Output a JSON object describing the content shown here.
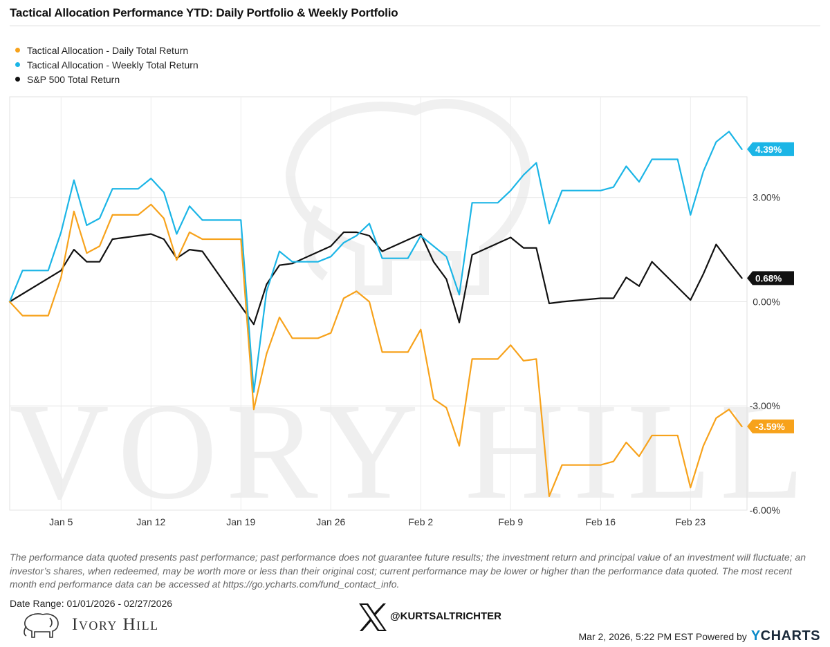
{
  "title": "Tactical Allocation Performance YTD: Daily Portfolio & Weekly Portfolio",
  "legend": [
    {
      "name": "Tactical Allocation - Daily Total Return",
      "color": "#f7a21b"
    },
    {
      "name": "Tactical Allocation - Weekly Total Return",
      "color": "#1bb5e6"
    },
    {
      "name": "S&P 500 Total Return",
      "color": "#111111"
    }
  ],
  "chart_data": {
    "type": "line",
    "xlabel": "",
    "ylabel": "",
    "x_ticks": [
      "Jan 5",
      "Jan 12",
      "Jan 19",
      "Jan 26",
      "Feb 2",
      "Feb 9",
      "Feb 16",
      "Feb 23"
    ],
    "y_ticks": [
      "3.00%",
      "0.00%",
      "-3.00%",
      "-6.00%"
    ],
    "ylim": [
      -6.0,
      5.9
    ],
    "grid": true,
    "legend_position": "top-left",
    "x": [
      "2026-01-01",
      "2026-01-02",
      "2026-01-03",
      "2026-01-04",
      "2026-01-05",
      "2026-01-06",
      "2026-01-07",
      "2026-01-08",
      "2026-01-09",
      "2026-01-10",
      "2026-01-11",
      "2026-01-12",
      "2026-01-13",
      "2026-01-14",
      "2026-01-15",
      "2026-01-16",
      "2026-01-17",
      "2026-01-18",
      "2026-01-19",
      "2026-01-20",
      "2026-01-21",
      "2026-01-22",
      "2026-01-23",
      "2026-01-24",
      "2026-01-25",
      "2026-01-26",
      "2026-01-27",
      "2026-01-28",
      "2026-01-29",
      "2026-01-30",
      "2026-01-31",
      "2026-02-01",
      "2026-02-02",
      "2026-02-03",
      "2026-02-04",
      "2026-02-05",
      "2026-02-06",
      "2026-02-07",
      "2026-02-08",
      "2026-02-09",
      "2026-02-10",
      "2026-02-11",
      "2026-02-12",
      "2026-02-13",
      "2026-02-14",
      "2026-02-15",
      "2026-02-16",
      "2026-02-17",
      "2026-02-18",
      "2026-02-19",
      "2026-02-20",
      "2026-02-21",
      "2026-02-22",
      "2026-02-23",
      "2026-02-24",
      "2026-02-25",
      "2026-02-26",
      "2026-02-27"
    ],
    "series": [
      {
        "name": "Tactical Allocation - Daily Total Return",
        "color": "#f7a21b",
        "last_label": "-3.59%",
        "values": [
          0.0,
          -0.4,
          -0.4,
          -0.4,
          0.7,
          2.6,
          1.4,
          1.6,
          2.5,
          2.5,
          2.5,
          2.8,
          2.4,
          1.2,
          2.0,
          1.8,
          1.8,
          1.8,
          1.8,
          -3.1,
          -1.5,
          -0.45,
          -1.05,
          -1.05,
          -1.05,
          -0.9,
          0.1,
          0.3,
          0.0,
          -1.45,
          -1.45,
          -1.45,
          -0.8,
          -2.8,
          -3.05,
          -4.15,
          -1.65,
          -1.65,
          -1.65,
          -1.25,
          -1.7,
          -1.65,
          -5.6,
          -4.7,
          -4.7,
          -4.7,
          -4.7,
          -4.6,
          -4.05,
          -4.45,
          -3.85,
          -3.85,
          -3.85,
          -5.35,
          -4.15,
          -3.35,
          -3.1,
          -3.59
        ]
      },
      {
        "name": "Tactical Allocation - Weekly Total Return",
        "color": "#1bb5e6",
        "values": [
          0.0,
          0.9,
          0.9,
          0.9,
          2.0,
          3.5,
          2.2,
          2.4,
          3.25,
          3.25,
          3.25,
          3.55,
          3.15,
          1.95,
          2.75,
          2.35,
          2.35,
          2.35,
          2.35,
          -2.6,
          0.3,
          1.45,
          1.15,
          1.15,
          1.15,
          1.3,
          1.7,
          1.9,
          2.25,
          1.25,
          1.25,
          1.25,
          1.9,
          1.6,
          1.3,
          0.2,
          2.85,
          2.85,
          2.85,
          3.2,
          3.65,
          4.0,
          2.25,
          3.2,
          3.2,
          3.2,
          3.2,
          3.3,
          3.9,
          3.45,
          4.1,
          4.1,
          4.1,
          2.5,
          3.75,
          4.6,
          4.9,
          4.39
        ]
      },
      {
        "name": "S&P 500 Total Return",
        "color": "#111111",
        "last_label": "0.68%",
        "values": [
          0.0,
          null,
          null,
          null,
          0.9,
          1.5,
          1.15,
          1.15,
          1.8,
          1.85,
          1.9,
          1.95,
          1.8,
          1.25,
          1.5,
          1.45,
          null,
          null,
          null,
          -0.65,
          0.5,
          1.05,
          1.1,
          null,
          null,
          1.6,
          2.0,
          2.0,
          1.9,
          1.45,
          null,
          null,
          1.95,
          1.15,
          0.65,
          -0.6,
          1.35,
          null,
          null,
          1.85,
          1.55,
          1.55,
          -0.05,
          0.0,
          null,
          null,
          0.1,
          0.1,
          0.7,
          0.45,
          1.15,
          null,
          null,
          0.05,
          0.8,
          1.65,
          1.15,
          0.68
        ]
      }
    ]
  },
  "y_label_weekly": "4.39%",
  "disclaimer": "The performance data quoted presents past performance; past performance does not guarantee future results; the investment return and principal value of an investment will fluctuate; an investor’s shares, when redeemed, may be worth more or less than their original cost; current performance may be lower or higher than the performance data quoted. The most recent month end performance data can be accessed at https://go.ycharts.com/fund_contact_info.",
  "date_range": "Date Range: 01/01/2026 - 02/27/2026",
  "brand": "Ivory Hill",
  "handle": "@KURTSALTRICHTER",
  "footer_timestamp": "Mar 2, 2026, 5:22 PM EST Powered by",
  "ycharts": {
    "y": "Y",
    "rest": "CHARTS"
  },
  "watermark": "IVORY HILL",
  "icons": {
    "x_logo": "x-logo-icon",
    "elephant": "elephant-icon"
  }
}
